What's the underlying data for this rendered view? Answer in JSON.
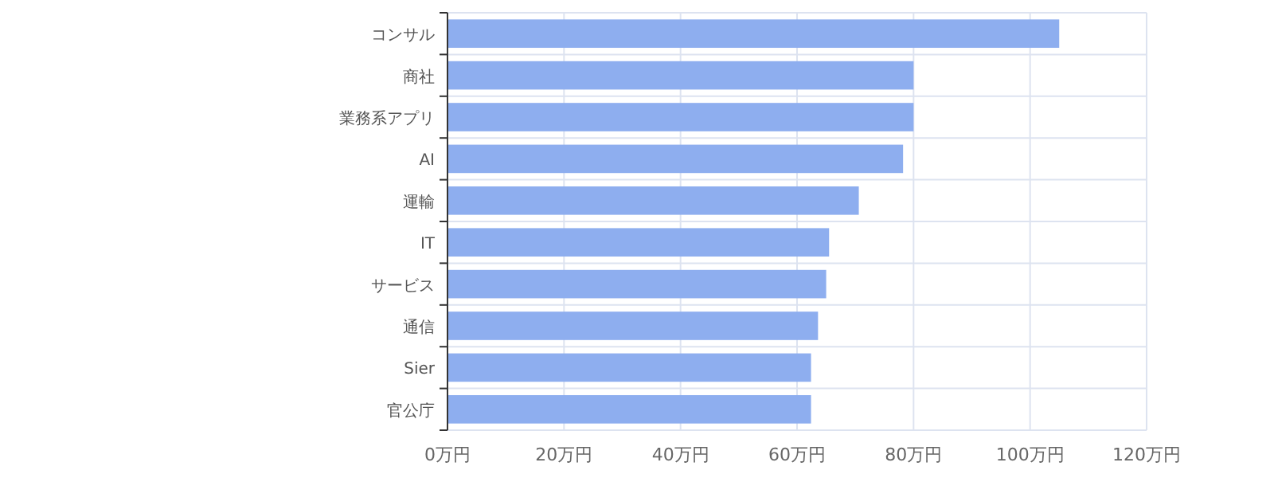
{
  "chart_data": {
    "type": "bar",
    "orientation": "horizontal",
    "categories": [
      "コンサル",
      "商社",
      "業務系アプリ",
      "AI",
      "運輸",
      "IT",
      "サービス",
      "通信",
      "Sier",
      "官公庁"
    ],
    "values": [
      105,
      80,
      80,
      78.2,
      70.6,
      65.5,
      65,
      63.6,
      62.4,
      62.4
    ],
    "color": "#8eaeef",
    "xlim": [
      0,
      120
    ],
    "xticks": [
      {
        "value": 0,
        "label": "0万円"
      },
      {
        "value": 20,
        "label": "20万円"
      },
      {
        "value": 40,
        "label": "40万円"
      },
      {
        "value": 60,
        "label": "60万円"
      },
      {
        "value": 80,
        "label": "80万円"
      },
      {
        "value": 100,
        "label": "100万円"
      },
      {
        "value": 120,
        "label": "120万円"
      }
    ],
    "grid": true
  }
}
